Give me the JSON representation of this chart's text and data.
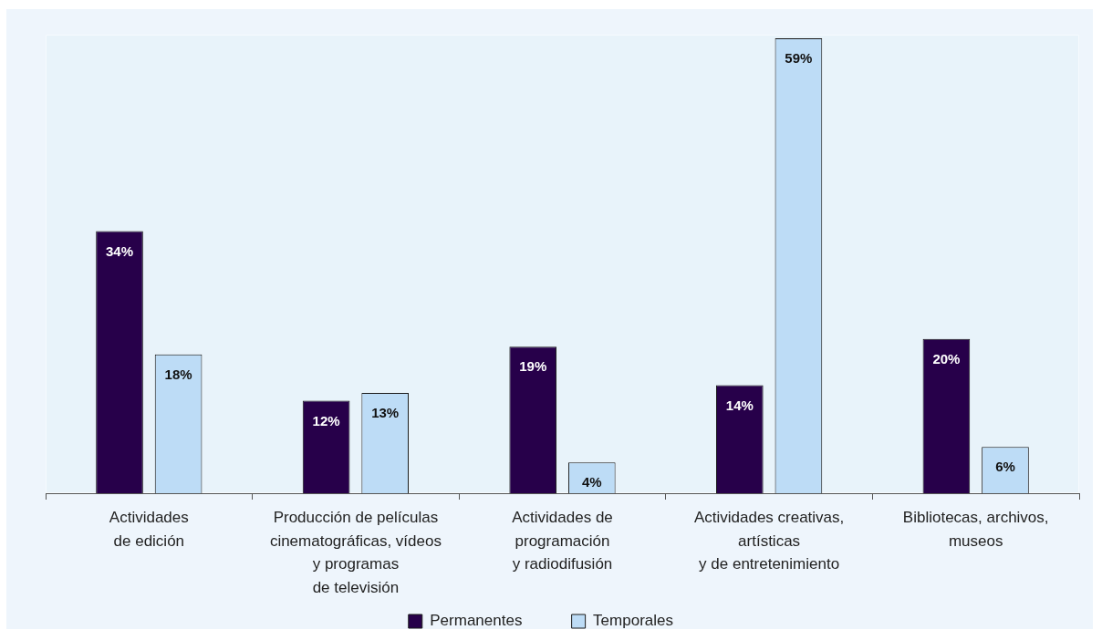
{
  "chart_data": {
    "type": "bar",
    "categories": [
      "Actividades\nde edición",
      "Producción de películas\ncinematográficas, vídeos\ny programas\nde televisión",
      "Actividades de\nprogramación\ny radiodifusión",
      "Actividades creativas,\nartísticas\ny de entretenimiento",
      "Bibliotecas, archivos,\nmuseos"
    ],
    "series": [
      {
        "name": "Permanentes",
        "color": "#27004a",
        "values": [
          34,
          12,
          19,
          14,
          20
        ],
        "value_labels": [
          "34%",
          "12%",
          "19%",
          "14%",
          "20%"
        ]
      },
      {
        "name": "Temporales",
        "color": "#bddcf6",
        "values": [
          18,
          13,
          4,
          59,
          6
        ],
        "value_labels": [
          "18%",
          "13%",
          "4%",
          "59%",
          "6%"
        ]
      }
    ],
    "legend": "bottom"
  }
}
